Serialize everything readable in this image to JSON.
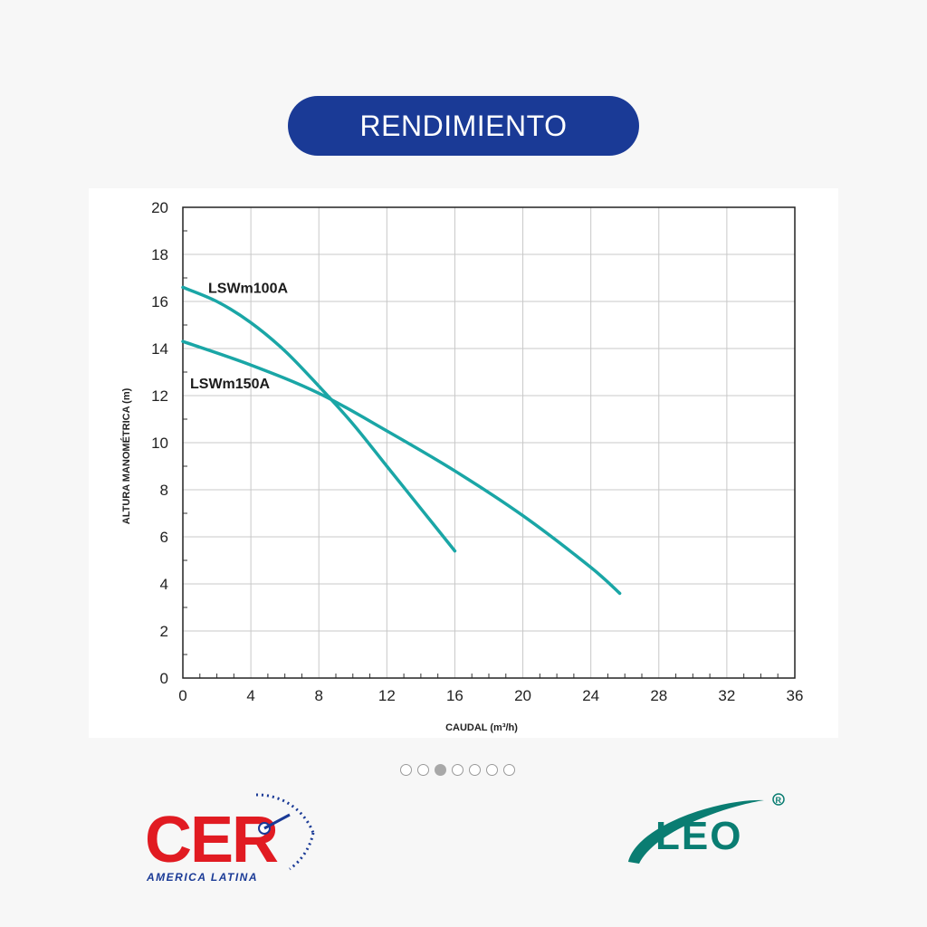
{
  "header": {
    "title": "RENDIMIENTO"
  },
  "carousel": {
    "count": 7,
    "active_index": 2
  },
  "logos": {
    "left": {
      "text": "CER",
      "subtext": "AMERICA LATINA",
      "color": "#e11b22"
    },
    "right": {
      "text": "LEO",
      "color": "#0a7d72"
    }
  },
  "colors": {
    "title_bg": "#1a3a96",
    "curve": "#1aa6a6"
  },
  "chart_data": {
    "type": "line",
    "xlabel": "CAUDAL (m³/h)",
    "ylabel": "ALTURA MANOMÉTRICA (m)",
    "xlim": [
      0,
      36
    ],
    "ylim": [
      0,
      20
    ],
    "xticks": [
      "0",
      "4",
      "8",
      "12",
      "16",
      "20",
      "24",
      "28",
      "32",
      "36"
    ],
    "yticks": [
      "0",
      "2",
      "4",
      "6",
      "8",
      "10",
      "12",
      "14",
      "16",
      "18",
      "20"
    ],
    "grid": true,
    "series": [
      {
        "name": "LSWm100A",
        "x": [
          0,
          2,
          4,
          6,
          8,
          10,
          12,
          14,
          16
        ],
        "y": [
          16.6,
          16.0,
          15.1,
          13.9,
          12.4,
          10.8,
          9.0,
          7.2,
          5.4
        ]
      },
      {
        "name": "LSWm150A",
        "x": [
          0,
          4,
          8,
          12,
          16,
          20,
          24,
          25.7
        ],
        "y": [
          14.3,
          13.3,
          12.1,
          10.5,
          8.8,
          6.9,
          4.7,
          3.6
        ]
      }
    ]
  }
}
